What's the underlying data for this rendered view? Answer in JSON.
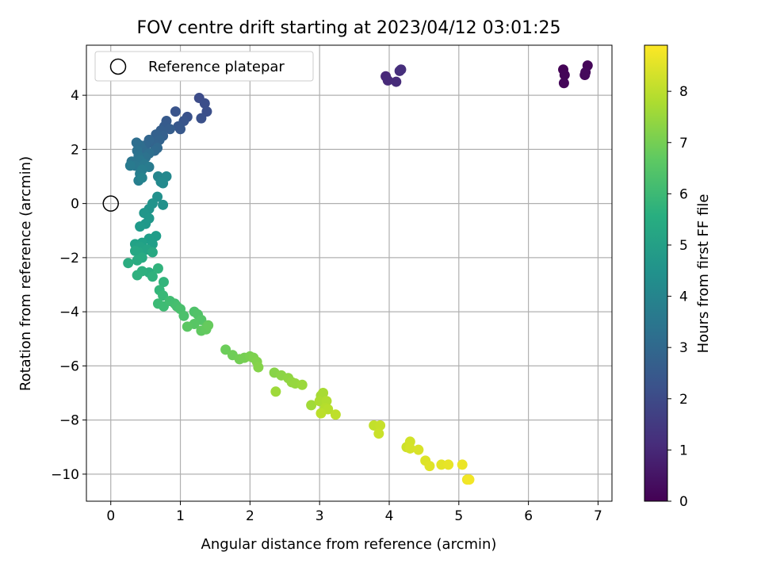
{
  "chart_data": {
    "type": "scatter",
    "title": "FOV centre drift starting at 2023/04/12 03:01:25",
    "xlabel": "Angular distance from reference (arcmin)",
    "ylabel": "Rotation from reference (arcmin)",
    "xlim": [
      -0.35,
      7.2
    ],
    "ylim": [
      -11,
      5.85
    ],
    "xticks": [
      0,
      1,
      2,
      3,
      4,
      5,
      6,
      7
    ],
    "xtick_labels": [
      "0",
      "1",
      "2",
      "3",
      "4",
      "5",
      "6",
      "7"
    ],
    "yticks": [
      4,
      2,
      0,
      -2,
      -4,
      -6,
      -8,
      -10
    ],
    "ytick_labels": [
      "4",
      "2",
      "0",
      "−2",
      "−4",
      "−6",
      "−8",
      "−10"
    ],
    "grid": true,
    "legend": {
      "position": "top-left",
      "entries": [
        {
          "label": "Reference platepar",
          "marker": "open-circle"
        }
      ]
    },
    "colorbar": {
      "label": "Hours from first FF file",
      "colormap": "viridis",
      "range": [
        0,
        8.9
      ],
      "ticks": [
        0,
        1,
        2,
        3,
        4,
        5,
        6,
        7,
        8
      ],
      "tick_labels": [
        "0",
        "1",
        "2",
        "3",
        "4",
        "5",
        "6",
        "7",
        "8"
      ]
    },
    "reference_point": {
      "x": 0,
      "y": 0
    },
    "points": [
      [
        6.5,
        4.95,
        0.05
      ],
      [
        6.52,
        4.75,
        0.08
      ],
      [
        6.51,
        4.45,
        0.12
      ],
      [
        6.85,
        5.1,
        0.15
      ],
      [
        6.81,
        4.75,
        0.18
      ],
      [
        6.82,
        4.85,
        0.2
      ],
      [
        3.95,
        4.7,
        1.0
      ],
      [
        3.98,
        4.55,
        1.05
      ],
      [
        4.1,
        4.5,
        1.1
      ],
      [
        4.15,
        4.9,
        1.15
      ],
      [
        4.17,
        4.95,
        1.2
      ],
      [
        1.27,
        3.9,
        2.05
      ],
      [
        1.35,
        3.7,
        2.1
      ],
      [
        1.38,
        3.4,
        2.15
      ],
      [
        1.3,
        3.15,
        2.2
      ],
      [
        1.1,
        3.2,
        2.25
      ],
      [
        0.93,
        3.4,
        2.3
      ],
      [
        1.05,
        3.05,
        2.35
      ],
      [
        0.97,
        2.85,
        2.4
      ],
      [
        1.0,
        2.75,
        2.45
      ],
      [
        0.8,
        3.05,
        2.5
      ],
      [
        0.77,
        2.85,
        2.55
      ],
      [
        0.85,
        2.75,
        2.6
      ],
      [
        0.72,
        2.7,
        2.65
      ],
      [
        0.75,
        2.5,
        2.7
      ],
      [
        0.65,
        2.55,
        2.75
      ],
      [
        0.7,
        2.35,
        2.8
      ],
      [
        0.62,
        2.2,
        2.85
      ],
      [
        0.55,
        2.35,
        2.9
      ],
      [
        0.5,
        2.15,
        2.95
      ],
      [
        0.67,
        2.05,
        3.0
      ],
      [
        0.63,
        1.95,
        3.05
      ],
      [
        0.45,
        2.0,
        3.1
      ],
      [
        0.42,
        2.15,
        3.15
      ],
      [
        0.37,
        2.25,
        3.2
      ],
      [
        0.55,
        1.85,
        3.25
      ],
      [
        0.38,
        1.95,
        3.3
      ],
      [
        0.5,
        1.7,
        3.35
      ],
      [
        0.4,
        1.75,
        3.4
      ],
      [
        0.3,
        1.55,
        3.45
      ],
      [
        0.42,
        1.6,
        3.5
      ],
      [
        0.35,
        1.4,
        3.55
      ],
      [
        0.48,
        1.45,
        3.6
      ],
      [
        0.28,
        1.4,
        3.65
      ],
      [
        0.55,
        1.35,
        3.7
      ],
      [
        0.45,
        1.25,
        3.75
      ],
      [
        0.42,
        1.1,
        3.8
      ],
      [
        0.4,
        0.85,
        3.85
      ],
      [
        0.45,
        0.95,
        4.0
      ],
      [
        0.68,
        1.0,
        4.1
      ],
      [
        0.8,
        1.0,
        4.15
      ],
      [
        0.72,
        0.8,
        4.2
      ],
      [
        0.75,
        0.75,
        4.25
      ],
      [
        0.67,
        0.25,
        4.45
      ],
      [
        0.75,
        -0.05,
        4.5
      ],
      [
        0.6,
        0.0,
        4.55
      ],
      [
        0.55,
        -0.2,
        4.6
      ],
      [
        0.48,
        -0.35,
        4.65
      ],
      [
        0.55,
        -0.55,
        4.7
      ],
      [
        0.5,
        -0.75,
        4.75
      ],
      [
        0.42,
        -0.85,
        4.8
      ],
      [
        0.65,
        -1.2,
        4.9
      ],
      [
        0.55,
        -1.3,
        4.95
      ],
      [
        0.6,
        -1.5,
        5.0
      ],
      [
        0.45,
        -1.45,
        5.05
      ],
      [
        0.35,
        -1.5,
        5.1
      ],
      [
        0.42,
        -1.6,
        5.15
      ],
      [
        0.52,
        -1.7,
        5.2
      ],
      [
        0.4,
        -1.8,
        5.25
      ],
      [
        0.35,
        -1.75,
        5.3
      ],
      [
        0.6,
        -1.8,
        5.35
      ],
      [
        0.45,
        -2.0,
        5.4
      ],
      [
        0.38,
        -2.1,
        5.45
      ],
      [
        0.25,
        -2.2,
        5.5
      ],
      [
        0.55,
        -2.55,
        5.55
      ],
      [
        0.45,
        -2.5,
        5.6
      ],
      [
        0.38,
        -2.65,
        5.65
      ],
      [
        0.6,
        -2.7,
        5.7
      ],
      [
        0.68,
        -2.4,
        5.75
      ],
      [
        0.76,
        -2.9,
        5.8
      ],
      [
        0.7,
        -3.2,
        5.9
      ],
      [
        0.75,
        -3.4,
        6.0
      ],
      [
        0.68,
        -3.7,
        6.05
      ],
      [
        0.76,
        -3.8,
        6.1
      ],
      [
        0.85,
        -3.6,
        6.15
      ],
      [
        0.92,
        -3.7,
        6.2
      ],
      [
        0.95,
        -3.8,
        6.25
      ],
      [
        1.0,
        -3.9,
        6.3
      ],
      [
        1.05,
        -4.15,
        6.35
      ],
      [
        1.2,
        -4.0,
        6.4
      ],
      [
        1.25,
        -4.1,
        6.45
      ],
      [
        1.3,
        -4.3,
        6.5
      ],
      [
        1.2,
        -4.45,
        6.55
      ],
      [
        1.1,
        -4.55,
        6.6
      ],
      [
        1.38,
        -4.55,
        6.65
      ],
      [
        1.3,
        -4.7,
        6.7
      ],
      [
        1.37,
        -4.65,
        6.75
      ],
      [
        1.4,
        -4.5,
        6.8
      ],
      [
        1.65,
        -5.4,
        6.9
      ],
      [
        1.75,
        -5.6,
        6.95
      ],
      [
        1.85,
        -5.75,
        7.0
      ],
      [
        1.92,
        -5.7,
        7.05
      ],
      [
        2.0,
        -5.65,
        7.1
      ],
      [
        2.05,
        -5.7,
        7.15
      ],
      [
        2.1,
        -5.85,
        7.2
      ],
      [
        2.12,
        -6.05,
        7.25
      ],
      [
        2.35,
        -6.25,
        7.3
      ],
      [
        2.45,
        -6.35,
        7.35
      ],
      [
        2.55,
        -6.45,
        7.4
      ],
      [
        2.6,
        -6.6,
        7.45
      ],
      [
        2.65,
        -6.65,
        7.5
      ],
      [
        2.75,
        -6.7,
        7.55
      ],
      [
        2.37,
        -6.95,
        7.6
      ],
      [
        2.88,
        -7.45,
        7.65
      ],
      [
        3.02,
        -7.1,
        7.7
      ],
      [
        3.05,
        -7.0,
        7.75
      ],
      [
        3.0,
        -7.3,
        7.8
      ],
      [
        3.1,
        -7.3,
        7.85
      ],
      [
        3.08,
        -7.55,
        7.9
      ],
      [
        3.12,
        -7.6,
        7.95
      ],
      [
        3.02,
        -7.75,
        8.0
      ],
      [
        3.23,
        -7.8,
        8.05
      ],
      [
        3.78,
        -8.2,
        8.1
      ],
      [
        3.87,
        -8.2,
        8.15
      ],
      [
        3.85,
        -8.5,
        8.2
      ],
      [
        4.25,
        -9.0,
        8.25
      ],
      [
        4.3,
        -8.8,
        8.3
      ],
      [
        4.3,
        -9.05,
        8.35
      ],
      [
        4.42,
        -9.1,
        8.4
      ],
      [
        4.52,
        -9.5,
        8.45
      ],
      [
        4.58,
        -9.7,
        8.5
      ],
      [
        4.75,
        -9.65,
        8.55
      ],
      [
        4.85,
        -9.65,
        8.6
      ],
      [
        5.05,
        -9.65,
        8.65
      ],
      [
        5.12,
        -10.2,
        8.7
      ],
      [
        5.15,
        -10.2,
        8.75
      ]
    ]
  }
}
